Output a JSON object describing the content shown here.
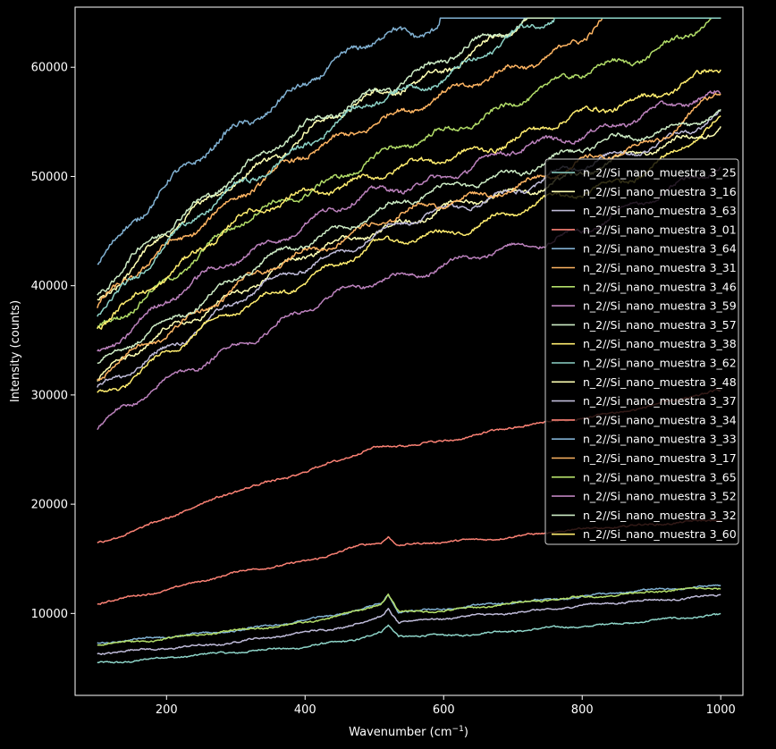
{
  "chart_data": {
    "type": "line",
    "title": "",
    "xlabel": "Wavenumber (cm",
    "xlabel_sup": "−1",
    "xlabel_close": ")",
    "ylabel": "Intensity (counts)",
    "xlim": [
      68,
      1032
    ],
    "ylim": [
      2500,
      65500
    ],
    "xticks": [
      200,
      400,
      600,
      800,
      1000
    ],
    "yticks": [
      10000,
      20000,
      30000,
      40000,
      50000,
      60000
    ],
    "grid": false,
    "legend_position": "right",
    "saturation_value": 64500,
    "peak": {
      "center": 520,
      "width": 6
    },
    "series": [
      {
        "name": "n_2//Si_nano_muestra 3_25",
        "color": "#8dd3c7",
        "points": [
          [
            100,
            5400
          ],
          [
            200,
            6000
          ],
          [
            300,
            6400
          ],
          [
            400,
            7000
          ],
          [
            480,
            7700
          ],
          [
            510,
            8200
          ],
          [
            520,
            8800
          ],
          [
            535,
            7900
          ],
          [
            600,
            8000
          ],
          [
            700,
            8400
          ],
          [
            800,
            8800
          ],
          [
            900,
            9400
          ],
          [
            1000,
            9800
          ]
        ]
      },
      {
        "name": "n_2//Si_nano_muestra 3_16",
        "color": "#feffb3",
        "points": [
          [
            100,
            38700
          ],
          [
            200,
            44600
          ],
          [
            300,
            49800
          ],
          [
            400,
            53800
          ],
          [
            500,
            57400
          ],
          [
            600,
            59800
          ],
          [
            700,
            63200
          ],
          [
            720,
            64500
          ],
          [
            1000,
            64500
          ]
        ]
      },
      {
        "name": "n_2//Si_nano_muestra 3_63",
        "color": "#bfbbd9",
        "points": [
          [
            100,
            6300
          ],
          [
            200,
            6800
          ],
          [
            300,
            7400
          ],
          [
            400,
            8200
          ],
          [
            480,
            9100
          ],
          [
            510,
            9800
          ],
          [
            520,
            10500
          ],
          [
            535,
            9200
          ],
          [
            600,
            9500
          ],
          [
            700,
            10100
          ],
          [
            800,
            10700
          ],
          [
            900,
            11200
          ],
          [
            1000,
            11700
          ]
        ]
      },
      {
        "name": "n_2//Si_nano_muestra 3_01",
        "color": "#fa8174",
        "points": [
          [
            100,
            10900
          ],
          [
            200,
            12200
          ],
          [
            300,
            13700
          ],
          [
            400,
            14800
          ],
          [
            480,
            16200
          ],
          [
            510,
            16500
          ],
          [
            520,
            17000
          ],
          [
            535,
            16100
          ],
          [
            600,
            16600
          ],
          [
            700,
            17000
          ],
          [
            800,
            17700
          ],
          [
            900,
            18200
          ],
          [
            1000,
            18500
          ]
        ]
      },
      {
        "name": "n_2//Si_nano_muestra 3_64",
        "color": "#81b1d2",
        "points": [
          [
            100,
            42500
          ],
          [
            200,
            49000
          ],
          [
            300,
            54500
          ],
          [
            400,
            58500
          ],
          [
            500,
            62400
          ],
          [
            520,
            63400
          ],
          [
            560,
            63000
          ],
          [
            595,
            64500
          ],
          [
            1000,
            64500
          ]
        ]
      },
      {
        "name": "n_2//Si_nano_muestra 3_31",
        "color": "#fdb462",
        "points": [
          [
            100,
            38000
          ],
          [
            200,
            43400
          ],
          [
            300,
            48200
          ],
          [
            400,
            51800
          ],
          [
            500,
            55200
          ],
          [
            600,
            57200
          ],
          [
            700,
            60000
          ],
          [
            800,
            62500
          ],
          [
            830,
            64500
          ],
          [
            1000,
            64500
          ]
        ]
      },
      {
        "name": "n_2//Si_nano_muestra 3_46",
        "color": "#b3de69",
        "points": [
          [
            100,
            35600
          ],
          [
            200,
            40600
          ],
          [
            300,
            45400
          ],
          [
            400,
            48700
          ],
          [
            500,
            51600
          ],
          [
            600,
            54000
          ],
          [
            700,
            56800
          ],
          [
            800,
            59400
          ],
          [
            900,
            61500
          ],
          [
            1000,
            64500
          ]
        ]
      },
      {
        "name": "n_2//Si_nano_muestra 3_59",
        "color": "#bc82bd",
        "points": [
          [
            100,
            34000
          ],
          [
            200,
            38500
          ],
          [
            300,
            42500
          ],
          [
            400,
            45700
          ],
          [
            500,
            48400
          ],
          [
            600,
            50100
          ],
          [
            700,
            52200
          ],
          [
            800,
            54000
          ],
          [
            900,
            55800
          ],
          [
            1000,
            57500
          ]
        ]
      },
      {
        "name": "n_2//Si_nano_muestra 3_57",
        "color": "#ccebc4",
        "points": [
          [
            100,
            39200
          ],
          [
            200,
            45200
          ],
          [
            300,
            50500
          ],
          [
            400,
            54300
          ],
          [
            500,
            57900
          ],
          [
            600,
            60500
          ],
          [
            700,
            63700
          ],
          [
            720,
            64500
          ],
          [
            1000,
            64500
          ]
        ]
      },
      {
        "name": "n_2//Si_nano_muestra 3_38",
        "color": "#ffed6f",
        "points": [
          [
            100,
            36100
          ],
          [
            200,
            41200
          ],
          [
            300,
            45700
          ],
          [
            400,
            48600
          ],
          [
            500,
            50000
          ],
          [
            600,
            51600
          ],
          [
            700,
            53500
          ],
          [
            800,
            55500
          ],
          [
            900,
            57600
          ],
          [
            1000,
            59800
          ]
        ]
      },
      {
        "name": "n_2//Si_nano_muestra 3_62",
        "color": "#8dd3c7",
        "points": [
          [
            100,
            37600
          ],
          [
            200,
            43800
          ],
          [
            300,
            49000
          ],
          [
            400,
            53000
          ],
          [
            500,
            56800
          ],
          [
            600,
            59200
          ],
          [
            700,
            62700
          ],
          [
            760,
            64500
          ],
          [
            1000,
            64500
          ]
        ]
      },
      {
        "name": "n_2//Si_nano_muestra 3_48",
        "color": "#feffb3",
        "points": [
          [
            100,
            31500
          ],
          [
            200,
            35600
          ],
          [
            300,
            39500
          ],
          [
            400,
            42600
          ],
          [
            500,
            45200
          ],
          [
            600,
            46900
          ],
          [
            700,
            48500
          ],
          [
            800,
            50400
          ],
          [
            900,
            52300
          ],
          [
            1000,
            54800
          ]
        ]
      },
      {
        "name": "n_2//Si_nano_muestra 3_37",
        "color": "#bfbbd9",
        "points": [
          [
            100,
            30200
          ],
          [
            200,
            34400
          ],
          [
            300,
            38400
          ],
          [
            400,
            41800
          ],
          [
            500,
            44700
          ],
          [
            600,
            46800
          ],
          [
            700,
            48800
          ],
          [
            800,
            50800
          ],
          [
            900,
            53000
          ],
          [
            1000,
            55600
          ]
        ]
      },
      {
        "name": "n_2//Si_nano_muestra 3_34",
        "color": "#fa8174",
        "points": [
          [
            100,
            16400
          ],
          [
            200,
            18700
          ],
          [
            300,
            21200
          ],
          [
            400,
            23000
          ],
          [
            500,
            25100
          ],
          [
            600,
            25800
          ],
          [
            700,
            27000
          ],
          [
            800,
            27900
          ],
          [
            900,
            29000
          ],
          [
            1000,
            30400
          ]
        ]
      },
      {
        "name": "n_2//Si_nano_muestra 3_33",
        "color": "#81b1d2",
        "points": [
          [
            100,
            7300
          ],
          [
            200,
            7800
          ],
          [
            300,
            8500
          ],
          [
            400,
            9300
          ],
          [
            480,
            10300
          ],
          [
            510,
            11000
          ],
          [
            520,
            11800
          ],
          [
            535,
            10200
          ],
          [
            600,
            10400
          ],
          [
            700,
            11000
          ],
          [
            800,
            11600
          ],
          [
            900,
            12100
          ],
          [
            1000,
            12600
          ]
        ]
      },
      {
        "name": "n_2//Si_nano_muestra 3_17",
        "color": "#fdb462",
        "points": [
          [
            100,
            31400
          ],
          [
            200,
            35900
          ],
          [
            300,
            39800
          ],
          [
            400,
            43000
          ],
          [
            500,
            45800
          ],
          [
            600,
            47400
          ],
          [
            700,
            49200
          ],
          [
            800,
            51000
          ],
          [
            900,
            53200
          ],
          [
            1000,
            57800
          ]
        ]
      },
      {
        "name": "n_2//Si_nano_muestra 3_65",
        "color": "#b3de69",
        "points": [
          [
            100,
            7200
          ],
          [
            200,
            7700
          ],
          [
            300,
            8400
          ],
          [
            400,
            9200
          ],
          [
            480,
            10200
          ],
          [
            510,
            10900
          ],
          [
            520,
            11700
          ],
          [
            535,
            10100
          ],
          [
            600,
            10300
          ],
          [
            700,
            10900
          ],
          [
            800,
            11500
          ],
          [
            900,
            12000
          ],
          [
            1000,
            12300
          ]
        ]
      },
      {
        "name": "n_2//Si_nano_muestra 3_52",
        "color": "#bc82bd",
        "points": [
          [
            100,
            27300
          ],
          [
            200,
            31000
          ],
          [
            300,
            34700
          ],
          [
            400,
            37600
          ],
          [
            500,
            40600
          ],
          [
            600,
            41800
          ],
          [
            700,
            43300
          ],
          [
            800,
            45200
          ],
          [
            900,
            47700
          ],
          [
            1000,
            51300
          ]
        ]
      },
      {
        "name": "n_2//Si_nano_muestra 3_32",
        "color": "#ccebc4",
        "points": [
          [
            100,
            32400
          ],
          [
            200,
            36800
          ],
          [
            300,
            40700
          ],
          [
            400,
            43900
          ],
          [
            500,
            46800
          ],
          [
            600,
            48700
          ],
          [
            700,
            50500
          ],
          [
            800,
            52400
          ],
          [
            900,
            54100
          ],
          [
            1000,
            55900
          ]
        ]
      },
      {
        "name": "n_2//Si_nano_muestra 3_60",
        "color": "#ffed6f",
        "points": [
          [
            100,
            29700
          ],
          [
            200,
            34000
          ],
          [
            300,
            37600
          ],
          [
            400,
            40700
          ],
          [
            500,
            43500
          ],
          [
            600,
            44900
          ],
          [
            700,
            46600
          ],
          [
            800,
            48600
          ],
          [
            900,
            50800
          ],
          [
            1000,
            54800
          ]
        ]
      }
    ]
  }
}
